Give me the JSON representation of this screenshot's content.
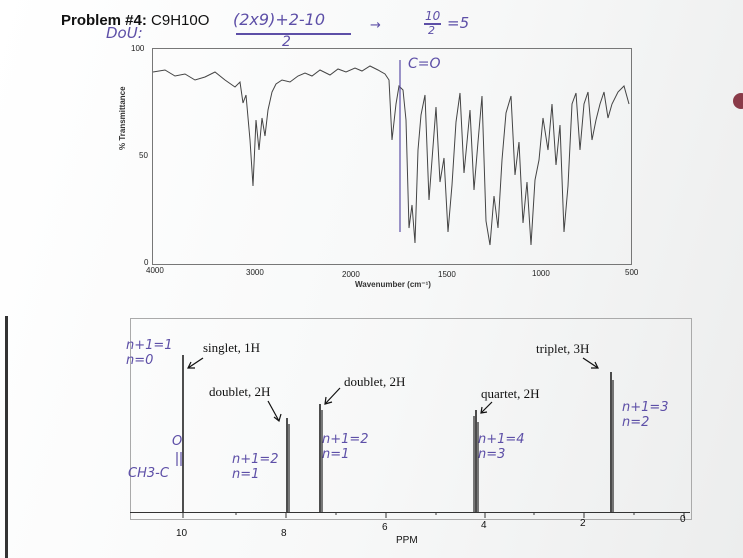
{
  "problem": {
    "label": "Problem #4:",
    "formula": "C9H10O"
  },
  "handwriting": {
    "dou": "DoU:",
    "equation_top": "(2x9)+2-10",
    "equation_den": "2",
    "arrow": "→",
    "ten": "10",
    "two": "2",
    "five": "=5",
    "carbonyl": "C=O"
  },
  "ir": {
    "y_axis_label": "% Transmittance",
    "x_axis_label": "Wavenumber (cm⁻¹)",
    "y_ticks": [
      "100",
      "50",
      "0"
    ],
    "x_ticks": [
      "4000",
      "3000",
      "2000",
      "1500",
      "1000",
      "500"
    ]
  },
  "nmr": {
    "x_axis_label": "PPM",
    "ticks": [
      "10",
      "8",
      "6",
      "4",
      "2",
      "0"
    ],
    "peaks": [
      {
        "label": "singlet, 1H",
        "ppm": 9.9
      },
      {
        "label": "doublet, 2H",
        "ppm": 7.9
      },
      {
        "label": "doublet, 2H",
        "ppm": 7.3
      },
      {
        "label": "quartet, 2H",
        "ppm": 4.1
      },
      {
        "label": "triplet, 3H",
        "ppm": 1.4
      }
    ],
    "annotations": {
      "a1": [
        "n+1=1",
        "n=0"
      ],
      "a2": [
        "n+1=2",
        "n=1"
      ],
      "a3": [
        "n+1=2",
        "n=1"
      ],
      "a4": [
        "n+1=4",
        "n=3"
      ],
      "a5": [
        "n+1=3",
        "n=2"
      ],
      "ch3c": "CH3-C",
      "oxygen": "O"
    }
  }
}
